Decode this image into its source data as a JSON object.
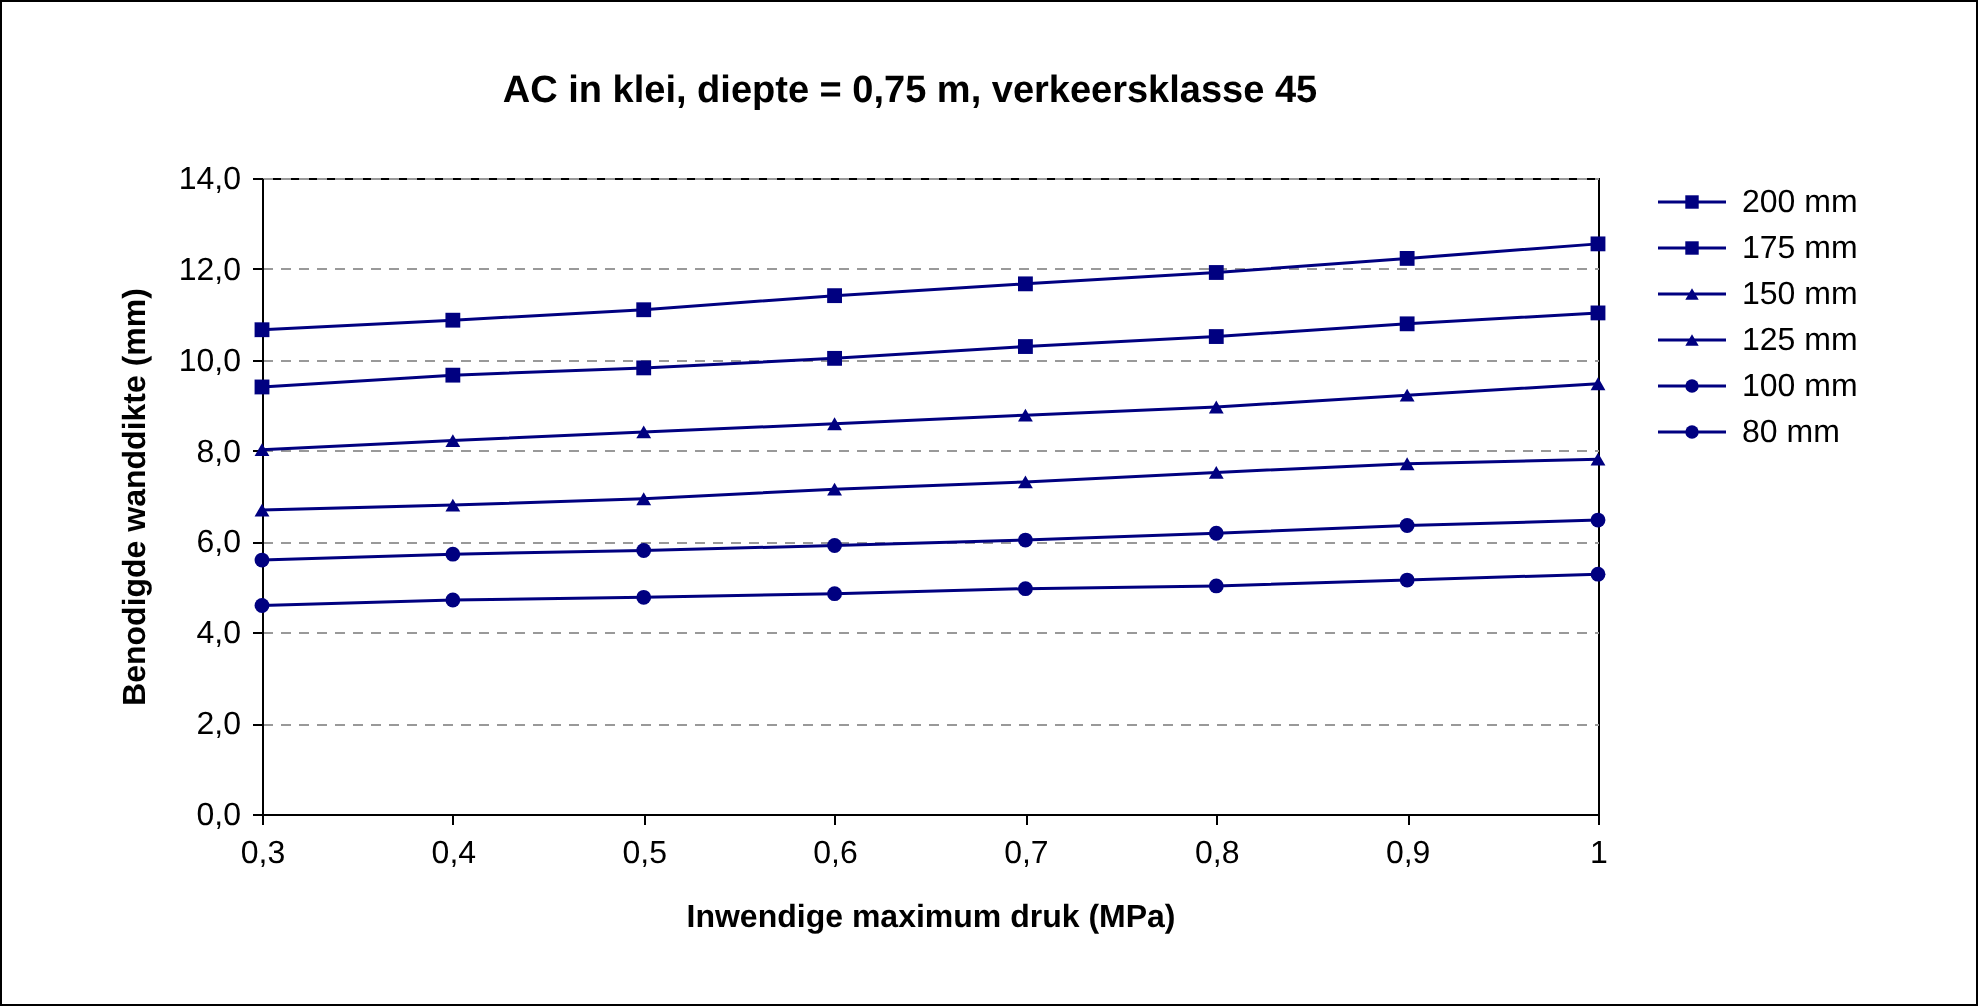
{
  "chart_data": {
    "type": "line",
    "title": "AC in klei, diepte = 0,75 m, verkeersklasse 45",
    "xlabel": "Inwendige maximum druk (MPa)",
    "ylabel": "Benodigde wanddikte (mm)",
    "x": [
      0.3,
      0.4,
      0.5,
      0.6,
      0.7,
      0.8,
      0.9,
      1
    ],
    "xlim": [
      0.3,
      1
    ],
    "xticks": [
      {
        "value": 0.3,
        "label": "0,3"
      },
      {
        "value": 0.4,
        "label": "0,4"
      },
      {
        "value": 0.5,
        "label": "0,5"
      },
      {
        "value": 0.6,
        "label": "0,6"
      },
      {
        "value": 0.7,
        "label": "0,7"
      },
      {
        "value": 0.8,
        "label": "0,8"
      },
      {
        "value": 0.9,
        "label": "0,9"
      },
      1
    ],
    "ylim": [
      0,
      14
    ],
    "yticks": [
      {
        "value": 0,
        "label": "0,0"
      },
      {
        "value": 2,
        "label": "2,0"
      },
      {
        "value": 4,
        "label": "4,0"
      },
      {
        "value": 6,
        "label": "6,0"
      },
      {
        "value": 8,
        "label": "8,0"
      },
      {
        "value": 10,
        "label": "10,0"
      },
      {
        "value": 12,
        "label": "12,0"
      },
      {
        "value": 14,
        "label": "14,0"
      }
    ],
    "grid": "y",
    "legend": "right",
    "line_style": "solid",
    "series": [
      {
        "name": "200 mm",
        "color": "#000080",
        "marker": "square",
        "values": [
          10.66,
          10.87,
          11.1,
          11.41,
          11.67,
          11.92,
          12.23,
          12.55
        ]
      },
      {
        "name": "175 mm",
        "color": "#000080",
        "marker": "square",
        "values": [
          9.4,
          9.66,
          9.82,
          10.03,
          10.29,
          10.51,
          10.79,
          11.03
        ]
      },
      {
        "name": "150 mm",
        "color": "#000080",
        "marker": "triangle",
        "values": [
          8.02,
          8.22,
          8.41,
          8.59,
          8.78,
          8.96,
          9.22,
          9.47
        ]
      },
      {
        "name": "125 mm",
        "color": "#000080",
        "marker": "triangle",
        "values": [
          6.69,
          6.8,
          6.94,
          7.15,
          7.31,
          7.52,
          7.71,
          7.81
        ]
      },
      {
        "name": "100 mm",
        "color": "#000080",
        "marker": "circle",
        "values": [
          5.59,
          5.72,
          5.8,
          5.91,
          6.03,
          6.18,
          6.35,
          6.47
        ]
      },
      {
        "name": "80 mm",
        "color": "#000080",
        "marker": "circle",
        "values": [
          4.59,
          4.71,
          4.77,
          4.85,
          4.96,
          5.02,
          5.15,
          5.28
        ]
      }
    ]
  }
}
